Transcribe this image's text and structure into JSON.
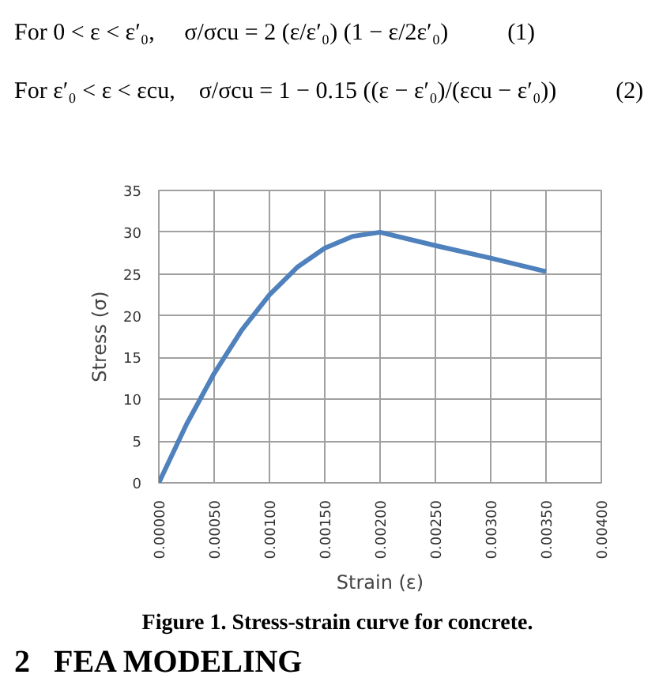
{
  "chart_data": {
    "type": "line",
    "title": "Figure 1. Stress-strain curve for concrete.",
    "xlabel": "Strain (ε)",
    "ylabel": "Stress (σ)",
    "annotations": [
      "For 0 < ε < ε′₀,     σ/σcu = 2 (ε/ε′₀) (1 − ε/2ε′₀)          (1)",
      "For ε′₀ < ε < εcu,    σ/σcu = 1 − 0.15 ((ε − ε′₀)/(εcu − ε′₀))          (2)",
      "2   FEA MODELING"
    ],
    "x": [
      0,
      0.00025,
      0.0005,
      0.00075,
      0.001,
      0.00125,
      0.0015,
      0.00175,
      0.002,
      0.0025,
      0.003,
      0.0035
    ],
    "series": [
      {
        "color": "#4f81bd",
        "values": [
          0,
          7.0,
          13.1,
          18.3,
          22.5,
          25.8,
          28.1,
          29.5,
          30.0,
          28.4,
          26.9,
          25.3
        ]
      }
    ],
    "xlim": [
      0,
      0.004
    ],
    "ylim": [
      0,
      35
    ],
    "xticks": [
      {
        "value": 0,
        "label": "0.00000"
      },
      {
        "value": 0.0005,
        "label": "0.00050"
      },
      {
        "value": 0.001,
        "label": "0.00100"
      },
      {
        "value": 0.0015,
        "label": "0.00150"
      },
      {
        "value": 0.002,
        "label": "0.00200"
      },
      {
        "value": 0.0025,
        "label": "0.00250"
      },
      {
        "value": 0.003,
        "label": "0.00300"
      },
      {
        "value": 0.0035,
        "label": "0.00350"
      },
      {
        "value": 0.004,
        "label": "0.00400"
      }
    ],
    "yticks": [
      0,
      5,
      10,
      15,
      20,
      25,
      30,
      35
    ],
    "grid": true,
    "marker": "none",
    "line_style": "solid"
  }
}
